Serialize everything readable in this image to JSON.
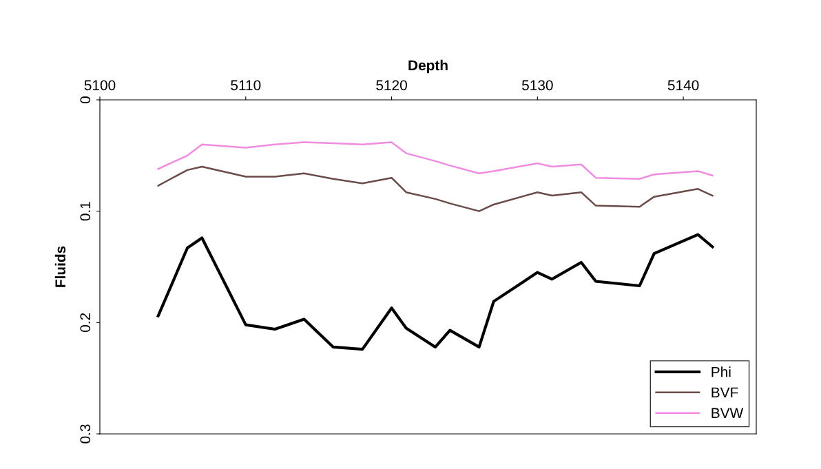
{
  "chart_data": {
    "type": "line",
    "xlabel": "Depth",
    "ylabel": "Fluids",
    "x": [
      5104,
      5106,
      5107,
      5110,
      5112,
      5114,
      5116,
      5118,
      5120,
      5121,
      5123,
      5124,
      5126,
      5127,
      5130,
      5131,
      5133,
      5134,
      5137,
      5138,
      5141,
      5142
    ],
    "series": [
      {
        "name": "Phi",
        "color": "#000000",
        "values": [
          0.194,
          0.133,
          0.124,
          0.202,
          0.206,
          0.197,
          0.222,
          0.224,
          0.187,
          0.205,
          0.222,
          0.207,
          0.222,
          0.181,
          0.155,
          0.161,
          0.146,
          0.163,
          0.167,
          0.138,
          0.121,
          0.132
        ]
      },
      {
        "name": "BVF",
        "color": "#6b4a4a",
        "values": [
          0.077,
          0.063,
          0.06,
          0.069,
          0.069,
          0.066,
          0.071,
          0.075,
          0.07,
          0.083,
          0.089,
          0.093,
          0.1,
          0.094,
          0.083,
          0.086,
          0.083,
          0.095,
          0.096,
          0.087,
          0.08,
          0.086
        ]
      },
      {
        "name": "BVW",
        "color": "#f08ce0",
        "values": [
          0.062,
          0.05,
          0.04,
          0.043,
          0.04,
          0.038,
          0.039,
          0.04,
          0.038,
          0.048,
          0.055,
          0.059,
          0.066,
          0.064,
          0.057,
          0.06,
          0.058,
          0.07,
          0.071,
          0.067,
          0.064,
          0.068
        ]
      }
    ],
    "xlim": [
      5100,
      5145
    ],
    "xticks": [
      5100,
      5110,
      5120,
      5130,
      5140
    ],
    "ylim": [
      0.3,
      0
    ],
    "yticks": [
      0,
      0.1,
      0.2,
      0.3
    ],
    "grid": false,
    "legend": "bottom right",
    "marker": "none",
    "line_style": "solid"
  }
}
